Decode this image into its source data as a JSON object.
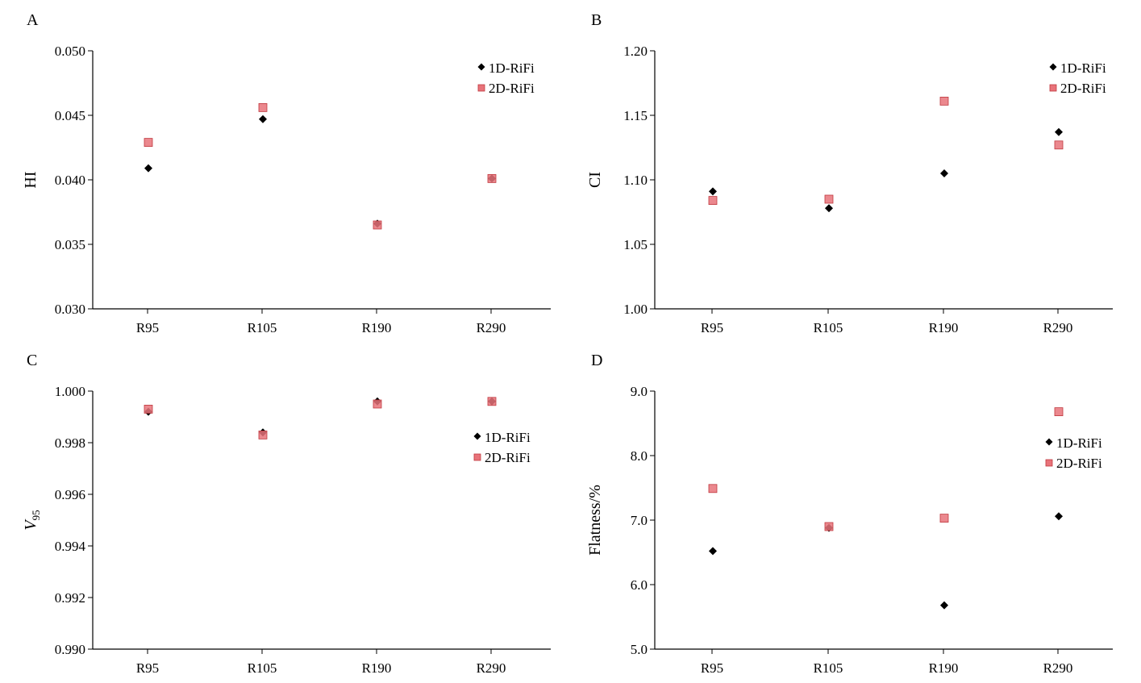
{
  "colors": {
    "series1": "#000000",
    "series2_fill": "#e8737a",
    "series2_stroke": "#c0393f",
    "axis": "#000000"
  },
  "chart_data": [
    {
      "panel": "A",
      "type": "scatter",
      "ylabel": "HI",
      "categories": [
        "R95",
        "R105",
        "R190",
        "R290"
      ],
      "ylim": [
        0.03,
        0.05
      ],
      "yticks": [
        "0.030",
        "0.035",
        "0.040",
        "0.045",
        "0.050"
      ],
      "legend_position": "top-right",
      "series": [
        {
          "name": "1D-RiFi",
          "marker": "diamond",
          "values": [
            0.0409,
            0.0447,
            0.0366,
            0.0401
          ]
        },
        {
          "name": "2D-RiFi",
          "marker": "square",
          "values": [
            0.0429,
            0.0456,
            0.0365,
            0.0401
          ]
        }
      ]
    },
    {
      "panel": "B",
      "type": "scatter",
      "ylabel": "CI",
      "categories": [
        "R95",
        "R105",
        "R190",
        "R290"
      ],
      "ylim": [
        1.0,
        1.2
      ],
      "yticks": [
        "1.00",
        "1.05",
        "1.10",
        "1.15",
        "1.20"
      ],
      "legend_position": "top-right",
      "series": [
        {
          "name": "1D-RiFi",
          "marker": "diamond",
          "values": [
            1.091,
            1.078,
            1.105,
            1.137
          ]
        },
        {
          "name": "2D-RiFi",
          "marker": "square",
          "values": [
            1.084,
            1.085,
            1.161,
            1.127
          ]
        }
      ]
    },
    {
      "panel": "C",
      "type": "scatter",
      "ylabel": "V",
      "ylabel_sub": "95",
      "categories": [
        "R95",
        "R105",
        "R190",
        "R290"
      ],
      "ylim": [
        0.99,
        1.0
      ],
      "yticks": [
        "0.990",
        "0.992",
        "0.994",
        "0.996",
        "0.998",
        "1.000"
      ],
      "legend_position": "right",
      "series": [
        {
          "name": "1D-RiFi",
          "marker": "diamond",
          "values": [
            0.9992,
            0.9984,
            0.9996,
            0.9996
          ]
        },
        {
          "name": "2D-RiFi",
          "marker": "square",
          "values": [
            0.9993,
            0.9983,
            0.9995,
            0.9996
          ]
        }
      ]
    },
    {
      "panel": "D",
      "type": "scatter",
      "ylabel": "Flatness/%",
      "categories": [
        "R95",
        "R105",
        "R190",
        "R290"
      ],
      "ylim": [
        5.0,
        9.0
      ],
      "yticks": [
        "5.0",
        "6.0",
        "7.0",
        "8.0",
        "9.0"
      ],
      "legend_position": "right",
      "series": [
        {
          "name": "1D-RiFi",
          "marker": "diamond",
          "values": [
            6.52,
            6.88,
            5.68,
            7.06
          ]
        },
        {
          "name": "2D-RiFi",
          "marker": "square",
          "values": [
            7.49,
            6.9,
            7.03,
            8.68
          ]
        }
      ]
    }
  ]
}
